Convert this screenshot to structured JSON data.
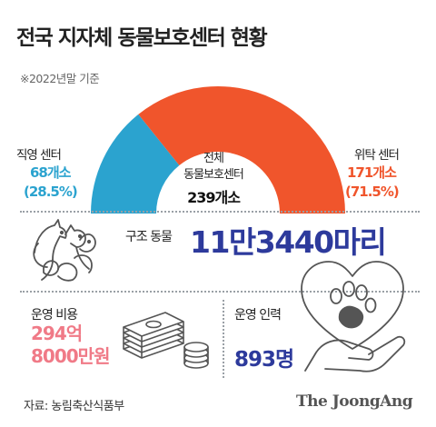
{
  "title": "전국 지자체 동물보호센터 현황",
  "subtitle": "※2022년말 기준",
  "chart_data": {
    "type": "pie",
    "style": "semicircle-donut",
    "total": {
      "label": "전체 동물보호센터",
      "value": 239,
      "value_text": "239개소"
    },
    "slices": [
      {
        "name": "직영 센터",
        "value": 68,
        "value_text": "68개소",
        "percent": 28.5,
        "percent_text": "(28.5%)",
        "color": "#2ba3cf"
      },
      {
        "name": "위탁 센터",
        "value": 171,
        "value_text": "171개소",
        "percent": 71.5,
        "percent_text": "(71.5%)",
        "color": "#f0552c"
      }
    ]
  },
  "rescued": {
    "label": "구조 동물",
    "value": "11만3440마리"
  },
  "cost": {
    "label": "운영 비용",
    "value_line1": "294억",
    "value_line2": "8000만원"
  },
  "staff": {
    "label": "운영 인력",
    "value": "893명"
  },
  "source": "자료: 농림축산식품부",
  "brand": "The JoongAng",
  "colors": {
    "direct": "#2ba3cf",
    "outsourced": "#f0552c",
    "navy": "#2d3a9c",
    "pink": "#f07a87",
    "icon_gray": "#555555"
  },
  "icons": [
    "animals-icon",
    "money-stack-icon",
    "heart-paw-hand-icon"
  ]
}
